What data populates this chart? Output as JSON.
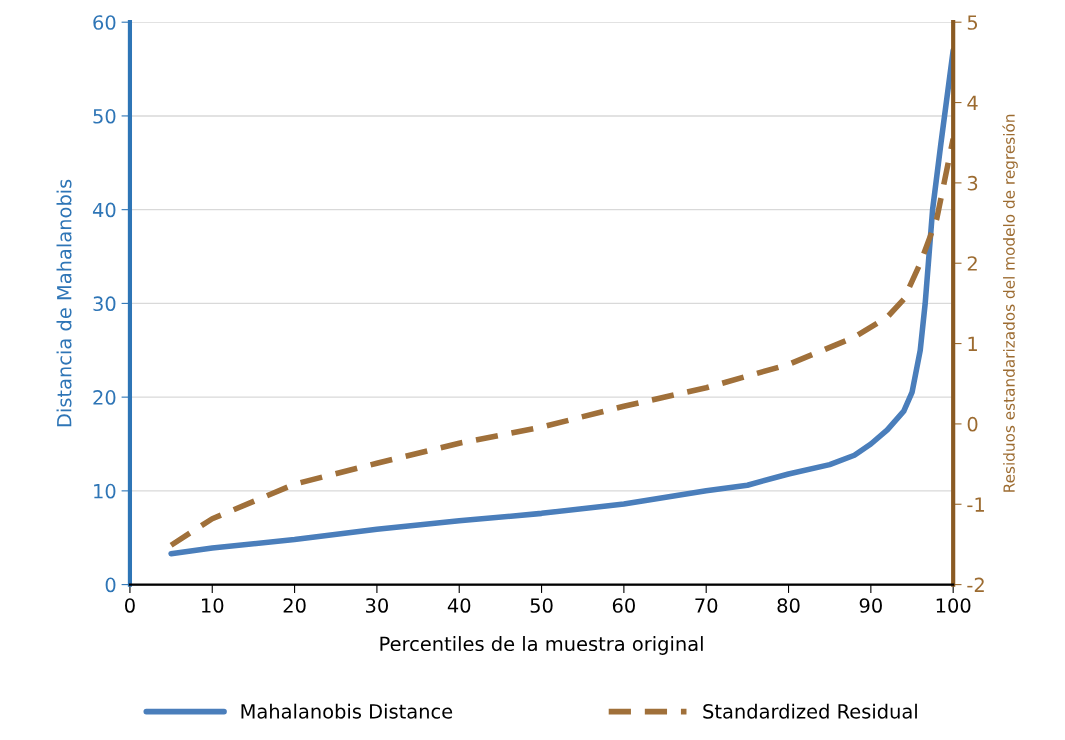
{
  "chart_data": {
    "type": "line",
    "xlabel": "Percentiles de la muestra original",
    "ylabel": "Distancia de Mahalanobis",
    "y2label": "Residuos estandarizados del modelo de regresión",
    "xlim": [
      0,
      100
    ],
    "xticks": [
      0,
      10,
      20,
      30,
      40,
      50,
      60,
      70,
      80,
      90,
      100
    ],
    "ylim": [
      0,
      60
    ],
    "yticks": [
      0,
      10,
      20,
      30,
      40,
      50,
      60
    ],
    "y2lim": [
      -2,
      5
    ],
    "y2ticks": [
      -2,
      -1,
      0,
      1,
      2,
      3,
      4,
      5
    ],
    "grid": "y",
    "legend": "bottom",
    "marker": "none",
    "series": [
      {
        "name": "Mahalanobis Distance",
        "color": "#4a7ebb",
        "line_style": "solid",
        "x": [
          5,
          10,
          20,
          30,
          40,
          50,
          60,
          70,
          75,
          80,
          85,
          88,
          90,
          92,
          94,
          95,
          96,
          96.6,
          97.5,
          98.5,
          100
        ],
        "values": [
          3.3,
          3.9,
          4.8,
          5.9,
          6.8,
          7.6,
          8.6,
          10,
          10.6,
          11.8,
          12.8,
          13.8,
          15,
          16.5,
          18.5,
          20.5,
          25,
          30,
          40,
          47,
          57
        ]
      },
      {
        "name": "Standardized Residual",
        "color": "#a0703a",
        "line_style": "dashed",
        "axis": "y2",
        "x": [
          5,
          10,
          20,
          30,
          40,
          50,
          60,
          70,
          80,
          88,
          92,
          94,
          96,
          98,
          100
        ],
        "values": [
          -1.51,
          -1.18,
          -0.75,
          -0.49,
          -0.24,
          -0.04,
          0.22,
          0.45,
          0.74,
          1.08,
          1.33,
          1.55,
          2.0,
          2.55,
          3.55
        ]
      }
    ]
  }
}
